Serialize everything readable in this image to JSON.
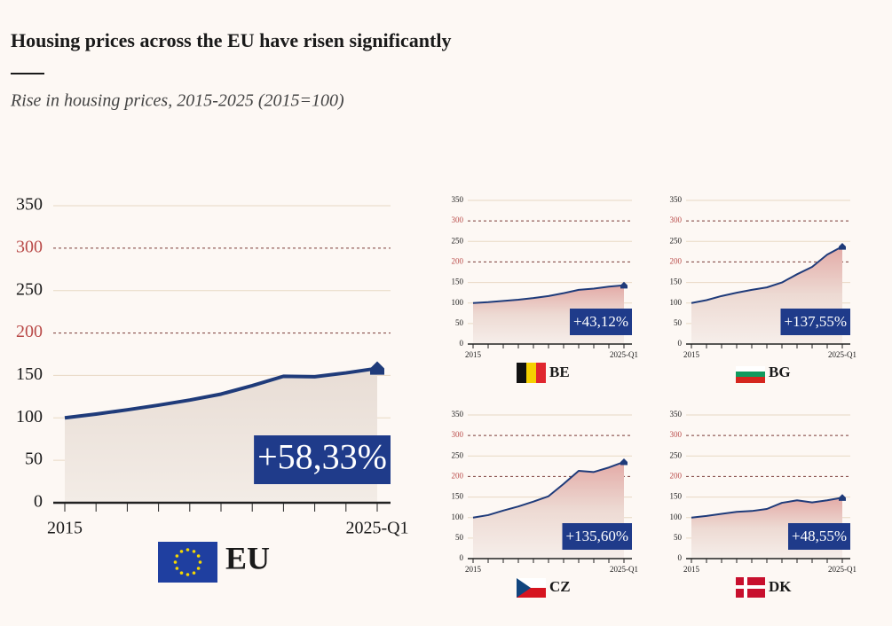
{
  "title": "Housing prices across the EU have risen significantly",
  "subtitle": "Rise in housing prices, 2015-2025 (2015=100)",
  "chart_data": [
    {
      "type": "area",
      "title": "EU",
      "x": [
        "2015",
        null,
        null,
        null,
        null,
        null,
        null,
        null,
        null,
        null,
        "2025-Q1"
      ],
      "values": [
        100,
        104.5,
        109.5,
        115,
        121,
        128,
        138,
        149,
        148.5,
        153,
        158.33
      ],
      "change": 58.33,
      "change_label": "+58,33%",
      "color": "#1f3b7a",
      "ylim": [
        0,
        350
      ],
      "yticks": [
        0,
        50,
        100,
        150,
        200,
        250,
        300,
        350
      ],
      "highlighted_yticks": [
        200,
        300
      ]
    },
    {
      "type": "area",
      "title": "BE",
      "x": [
        "2015",
        null,
        null,
        null,
        null,
        null,
        null,
        null,
        null,
        null,
        "2025-Q1"
      ],
      "values": [
        100,
        102,
        105,
        108,
        112,
        117,
        124,
        132,
        135,
        140,
        143.12
      ],
      "change": 43.12,
      "change_label": "+43,12%",
      "color": "#1f3b7a",
      "ylim": [
        0,
        350
      ],
      "yticks": [
        0,
        50,
        100,
        150,
        200,
        250,
        300,
        350
      ],
      "highlighted_yticks": [
        200,
        300
      ]
    },
    {
      "type": "area",
      "title": "BG",
      "x": [
        "2015",
        null,
        null,
        null,
        null,
        null,
        null,
        null,
        null,
        null,
        "2025-Q1"
      ],
      "values": [
        100,
        107,
        117,
        125,
        132,
        138,
        150,
        170,
        188,
        218,
        237.55
      ],
      "change": 137.55,
      "change_label": "+137,55%",
      "color": "#1f3b7a",
      "ylim": [
        0,
        350
      ],
      "yticks": [
        0,
        50,
        100,
        150,
        200,
        250,
        300,
        350
      ],
      "highlighted_yticks": [
        200,
        300
      ]
    },
    {
      "type": "area",
      "title": "CZ",
      "x": [
        "2015",
        null,
        null,
        null,
        null,
        null,
        null,
        null,
        null,
        null,
        "2025-Q1"
      ],
      "values": [
        100,
        106,
        117,
        127,
        139,
        152,
        182,
        214,
        211,
        222,
        235.6
      ],
      "change": 135.6,
      "change_label": "+135,60%",
      "color": "#1f3b7a",
      "ylim": [
        0,
        350
      ],
      "yticks": [
        0,
        50,
        100,
        150,
        200,
        250,
        300,
        350
      ],
      "highlighted_yticks": [
        200,
        300
      ]
    },
    {
      "type": "area",
      "title": "DK",
      "x": [
        "2015",
        null,
        null,
        null,
        null,
        null,
        null,
        null,
        null,
        null,
        "2025-Q1"
      ],
      "values": [
        100,
        104,
        109,
        114,
        116,
        121,
        136,
        142,
        137,
        142,
        148.55
      ],
      "change": 48.55,
      "change_label": "+48,55%",
      "color": "#1f3b7a",
      "ylim": [
        0,
        350
      ],
      "yticks": [
        0,
        50,
        100,
        150,
        200,
        250,
        300,
        350
      ],
      "highlighted_yticks": [
        200,
        300
      ]
    }
  ]
}
